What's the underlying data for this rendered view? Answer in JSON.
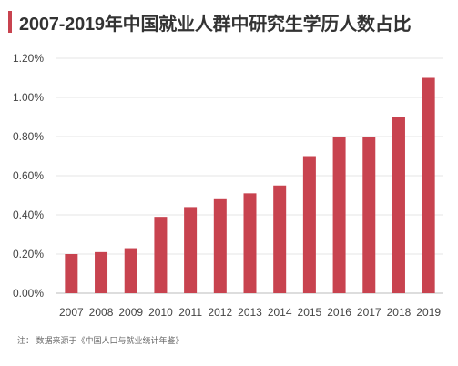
{
  "chart_data": {
    "type": "bar",
    "title": "2007-2019年中国就业人群中研究生学历人数占比",
    "categories": [
      "2007",
      "2008",
      "2009",
      "2010",
      "2011",
      "2012",
      "2013",
      "2014",
      "2015",
      "2016",
      "2017",
      "2018",
      "2019"
    ],
    "values": [
      0.2,
      0.21,
      0.23,
      0.39,
      0.44,
      0.48,
      0.51,
      0.55,
      0.7,
      0.8,
      0.8,
      0.9,
      1.1
    ],
    "yticks": [
      "0.00%",
      "0.20%",
      "0.40%",
      "0.60%",
      "0.80%",
      "1.00%",
      "1.20%"
    ],
    "ylim": [
      0,
      1.2
    ],
    "grid": true,
    "bar_color": "#c8434f",
    "note": "注： 数据来源于《中国人口与就业统计年鉴》"
  }
}
